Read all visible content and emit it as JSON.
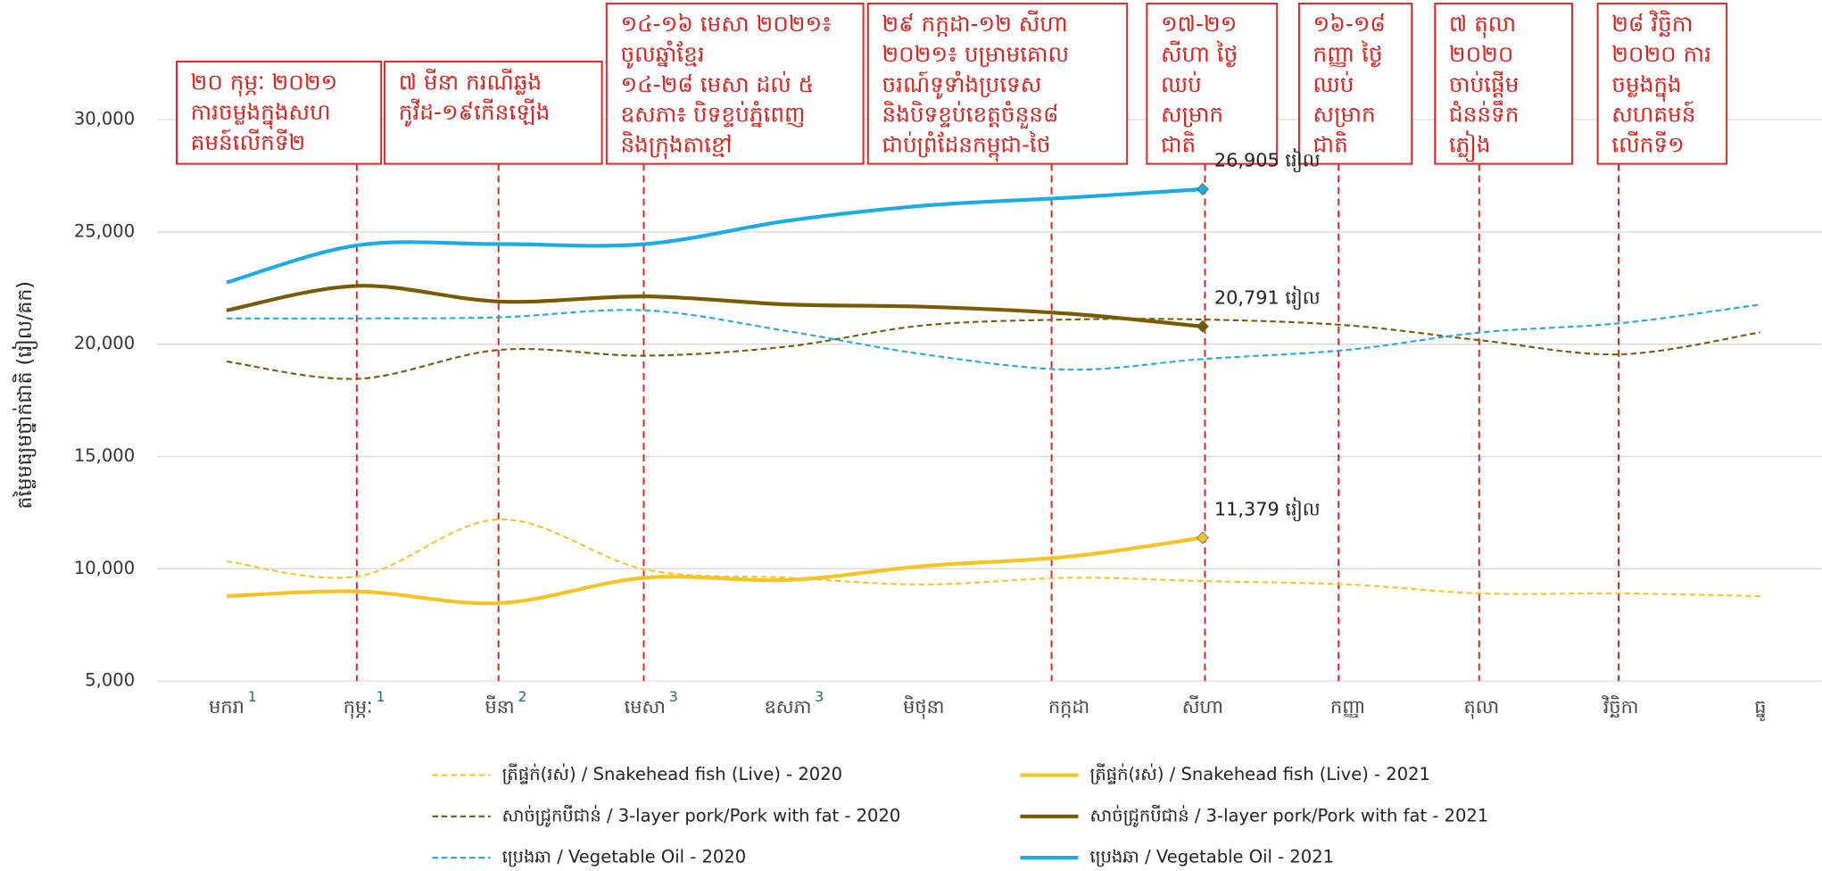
{
  "chart_data": {
    "type": "line",
    "ylabel": "តម្លៃមធ្យមថ្នាក់ជាតិ (រៀល/គក)",
    "categories": [
      "មករា",
      "កុម្ភៈ",
      "មីនា",
      "មេសា",
      "ឧសភា",
      "មិថុនា",
      "កក្កដា",
      "សីហា",
      "កញ្ញា",
      "តុលា",
      "វិច្ឆិកា",
      "ធ្នូ"
    ],
    "category_notes": [
      "1",
      "1",
      "2",
      "3",
      "3",
      null,
      null,
      null,
      null,
      null,
      null,
      null
    ],
    "ylim": [
      5000,
      30000
    ],
    "yticks": [
      {
        "value": 5000,
        "label": "5,000"
      },
      {
        "value": 10000,
        "label": "10,000"
      },
      {
        "value": 15000,
        "label": "15,000"
      },
      {
        "value": 20000,
        "label": "20,000"
      },
      {
        "value": 25000,
        "label": "25,000"
      },
      {
        "value": 30000,
        "label": "30,000"
      }
    ],
    "grid": true,
    "series": [
      {
        "name": "ត្រីផ្ទក់(រស់) / Snakehead fish (Live) - 2020",
        "color": "#f6c324",
        "line_style": "dashed",
        "values": [
          10330,
          9660,
          12200,
          9970,
          9600,
          9300,
          9600,
          9450,
          9300,
          8900,
          8900,
          8780
        ]
      },
      {
        "name": "ត្រីផ្ទក់(រស់) / Snakehead fish (Live) - 2021",
        "color": "#f6c324",
        "line_style": "solid",
        "values": [
          8780,
          8990,
          8470,
          9600,
          9500,
          10120,
          10540,
          11379,
          null,
          null,
          null,
          null
        ],
        "value_labels": [
          null,
          null,
          null,
          null,
          null,
          null,
          null,
          "11,379 រៀល",
          null,
          null,
          null,
          null
        ]
      },
      {
        "name": "សាច់ជ្រូកបីជាន់ /  3-layer pork/Pork with fat - 2020",
        "color": "#7a5a00",
        "line_style": "dashed",
        "values": [
          19230,
          18460,
          19750,
          19490,
          19900,
          20840,
          21100,
          21100,
          20840,
          20170,
          19550,
          20530
        ]
      },
      {
        "name": "សាច់ជ្រូកបីជាន់ /  3-layer pork/Pork with fat - 2021",
        "color": "#7a5a00",
        "line_style": "solid",
        "values": [
          21510,
          22600,
          21900,
          22130,
          21770,
          21670,
          21360,
          20791,
          null,
          null,
          null,
          null
        ],
        "value_labels": [
          null,
          null,
          null,
          null,
          null,
          null,
          null,
          "20,791 រៀល",
          null,
          null,
          null,
          null
        ]
      },
      {
        "name": "ប្រេងឆា / Vegetable Oil - 2020",
        "color": "#1aace3",
        "line_style": "dashed",
        "values": [
          21150,
          21150,
          21200,
          21510,
          20580,
          19550,
          18870,
          19340,
          19750,
          20530,
          20940,
          21770
        ]
      },
      {
        "name": "ប្រេងឆា / Vegetable Oil - 2021",
        "color": "#1aace3",
        "line_style": "solid",
        "values": [
          22750,
          24410,
          24460,
          24460,
          25500,
          26170,
          26530,
          26905,
          null,
          null,
          null,
          null
        ],
        "value_labels": [
          null,
          null,
          null,
          null,
          null,
          null,
          null,
          "26,905 រៀល",
          null,
          null,
          null,
          null
        ]
      }
    ],
    "annotations": [
      {
        "lines": [
          "២០ កុម្ភៈ ២០២១",
          "ការចម្លងក្នុងសហ",
          "គមន៍លើកទី២"
        ]
      },
      {
        "lines": [
          "៧ មីនា ករណីឆ្លង",
          "កូវីដ-១៩កើនឡើង"
        ]
      },
      {
        "lines": [
          "១៤-១៦ មេសា ២០២១៖",
          "ចូលឆ្នាំខ្មែរ",
          "១៤-២៨ មេសា ដល់ ៥",
          "ឧសភា៖ បិទខ្ទប់ភ្នំពេញ",
          "និងក្រុងតាខ្មៅ"
        ]
      },
      {
        "lines": [
          "២៩ កក្កដា-១២ សីហា",
          "២០២១៖ បម្រាមគោល",
          "ចរណ៍ទូទាំងប្រទេស",
          "និងបិទខ្ទប់ខេត្តចំនួន៨",
          "ជាប់ព្រំដែនកម្ពុជា-ថៃ"
        ]
      },
      {
        "lines": [
          "១៧-២១",
          "សីហា ថ្ងៃ",
          "ឈប់",
          "សម្រាក",
          "ជាតិ"
        ]
      },
      {
        "lines": [
          "១៦-១៨",
          "កញ្ញា ថ្ងៃ",
          "ឈប់",
          "សម្រាក",
          "ជាតិ"
        ]
      },
      {
        "lines": [
          "៧ តុលា",
          "២០២០",
          "ចាប់ផ្តើម",
          "ជំនន់ទឹក",
          "ភ្លៀង"
        ]
      },
      {
        "lines": [
          "២៨ វិច្ឆិកា",
          "២០២០ ការ",
          "ចម្លងក្នុង",
          "សហគមន៍",
          "លើកទី១"
        ]
      }
    ]
  }
}
